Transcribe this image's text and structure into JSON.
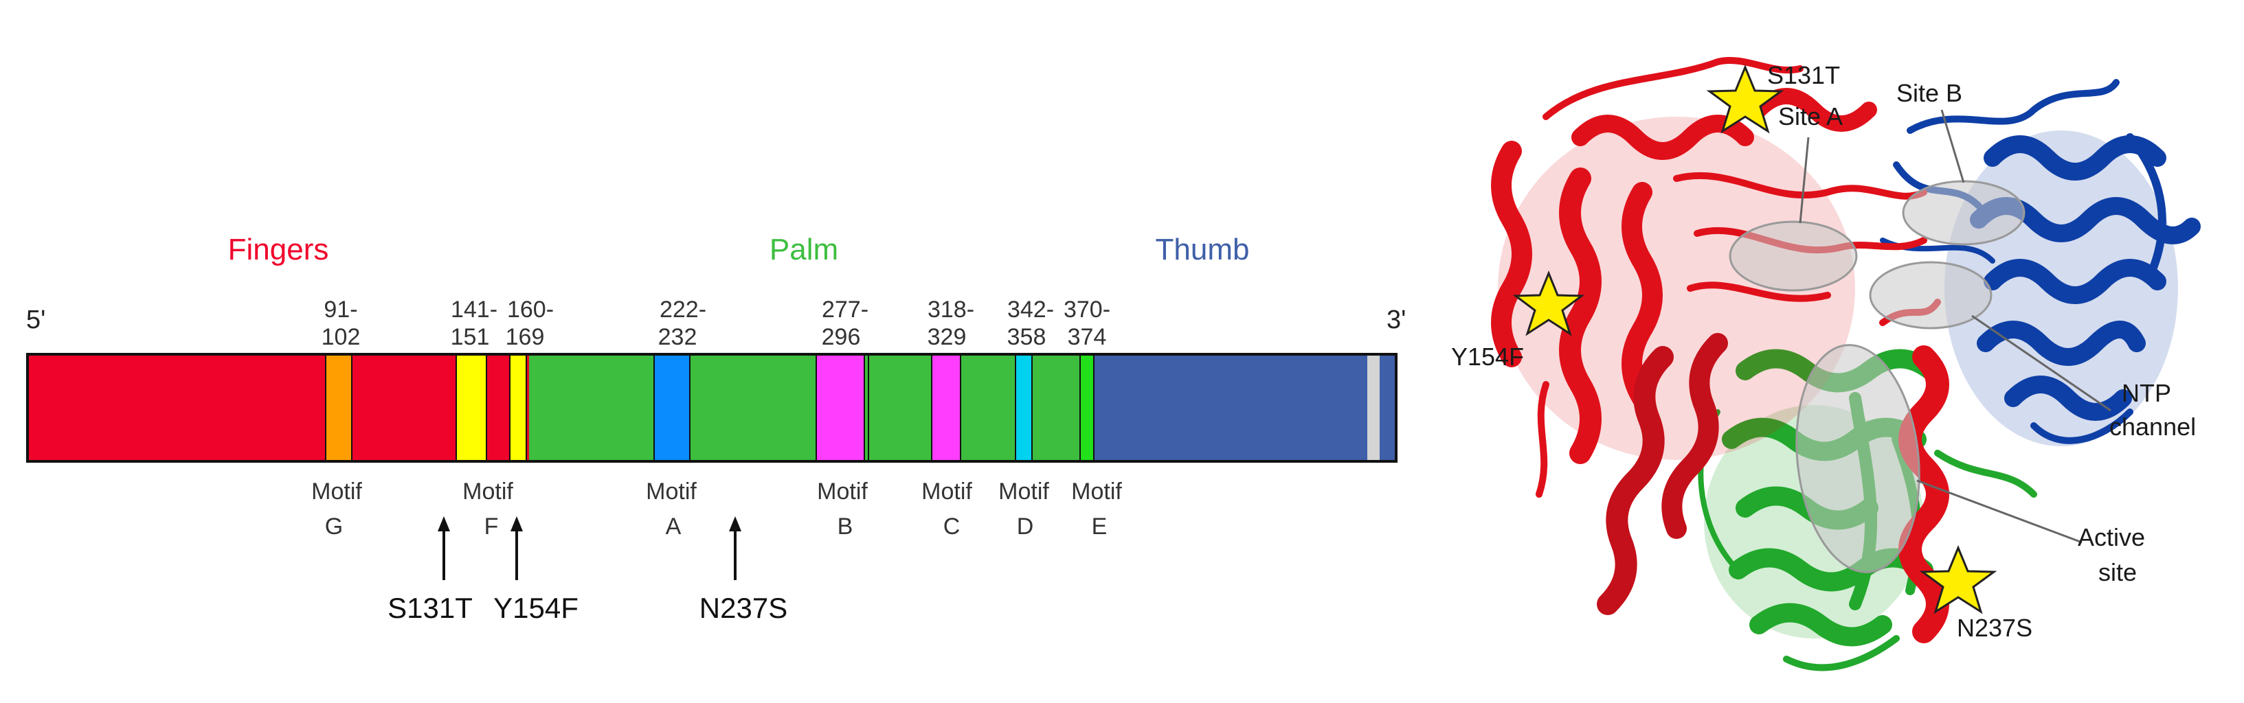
{
  "linear_map": {
    "end_5": "5'",
    "end_3": "3'",
    "domains": [
      {
        "label": "Fingers",
        "color": "#f0032b"
      },
      {
        "label": "Palm",
        "color": "#3dbe3f"
      },
      {
        "label": "Thumb",
        "color": "#3f5fa8"
      }
    ],
    "motifs": [
      {
        "range": [
          "91-",
          "102"
        ],
        "word": "Motif",
        "letter": "G",
        "color": "#ff9e00"
      },
      {
        "range": [
          "141-",
          "151"
        ],
        "word": "Motif",
        "letter": "F",
        "color": "#ffff00"
      },
      {
        "range": [
          "160-",
          "169"
        ],
        "color": "#ffff00"
      },
      {
        "range": [
          "222-",
          "232"
        ],
        "word": "Motif",
        "letter": "A",
        "color": "#0a8cff"
      },
      {
        "range": [
          "277-",
          "296"
        ],
        "word": "Motif",
        "letter": "B",
        "color": "#ff3dff"
      },
      {
        "range": [
          "318-",
          "329"
        ],
        "word": "Motif",
        "letter": "C",
        "color": "#ff3dff"
      },
      {
        "range": [
          "342-",
          "358"
        ],
        "word": "Motif",
        "letter": "D",
        "color": "#00d2f0"
      },
      {
        "range": [
          "370-",
          "374"
        ],
        "word": "Motif",
        "letter": "E",
        "color": "#22e01a"
      }
    ],
    "mutations": [
      "S131T",
      "Y154F",
      "N237S"
    ]
  },
  "structure": {
    "labels": {
      "s131t": "S131T",
      "site_a": "Site A",
      "site_b": "Site B",
      "y154f": "Y154F",
      "ntp_1": "NTP",
      "ntp_2": "channel",
      "active_1": "Active",
      "active_2": "site",
      "n237s": "N237S"
    },
    "colors": {
      "fingers": "#e0101a",
      "palm": "#22a82c",
      "thumb": "#0e3fa6",
      "star": "#ffee00",
      "site": "#c8c8c8"
    }
  }
}
